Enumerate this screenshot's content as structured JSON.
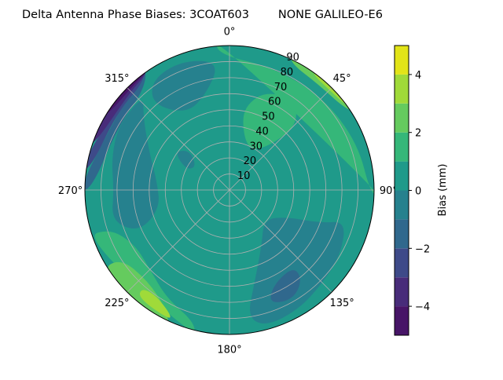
{
  "chart_data": {
    "type": "contour",
    "projection": "polar",
    "title": "Delta Antenna Phase Biases: 3COAT603        NONE GALILEO-E6",
    "theta_direction": "clockwise",
    "theta_zero": "north",
    "theta_ticks": [
      0,
      45,
      90,
      135,
      180,
      225,
      270,
      315
    ],
    "theta_tick_labels": [
      "0°",
      "45°",
      "90°",
      "135°",
      "180°",
      "225°",
      "270°",
      "315°"
    ],
    "r_range": [
      0,
      90
    ],
    "r_ticks": [
      10,
      20,
      30,
      40,
      50,
      60,
      70,
      80,
      90
    ],
    "r_tick_labels": [
      "10",
      "20",
      "30",
      "40",
      "50",
      "60",
      "70",
      "80",
      "90"
    ],
    "grid": true,
    "levels": [
      -5,
      -4,
      -3,
      -2,
      -1,
      0,
      1,
      2,
      3,
      4,
      5
    ],
    "level_colors": [
      "#471567",
      "#482c7a",
      "#3e4a89",
      "#30688d",
      "#26818e",
      "#1f9a8a",
      "#35b779",
      "#65cb5e",
      "#a0da39",
      "#e2e418"
    ],
    "background_level": 5,
    "regions": [
      {
        "level": 4,
        "points": [
          [
            110,
            60
          ],
          [
            115,
            40
          ],
          [
            130,
            28
          ],
          [
            150,
            40
          ],
          [
            165,
            60
          ],
          [
            172,
            80
          ],
          [
            165,
            88
          ],
          [
            150,
            86
          ],
          [
            135,
            82
          ],
          [
            120,
            80
          ],
          [
            105,
            75
          ]
        ]
      },
      {
        "level": 3,
        "points": [
          [
            140,
            62
          ],
          [
            155,
            65
          ],
          [
            161,
            75
          ],
          [
            150,
            79
          ],
          [
            141,
            72
          ]
        ]
      },
      {
        "level": 4,
        "points": [
          [
            245,
            62
          ],
          [
            255,
            45
          ],
          [
            275,
            45
          ],
          [
            295,
            55
          ],
          [
            310,
            70
          ],
          [
            318,
            80
          ],
          [
            300,
            80
          ],
          [
            285,
            76
          ],
          [
            270,
            72
          ],
          [
            255,
            76
          ]
        ]
      },
      {
        "level": 4,
        "points": [
          [
            318,
            72
          ],
          [
            330,
            55
          ],
          [
            345,
            60
          ],
          [
            356,
            80
          ],
          [
            340,
            86
          ],
          [
            325,
            84
          ]
        ]
      },
      {
        "level": 4,
        "points": [
          [
            295,
            30
          ],
          [
            305,
            25
          ],
          [
            315,
            35
          ],
          [
            305,
            42
          ]
        ]
      },
      {
        "level": 6,
        "points": [
          [
            10,
            45
          ],
          [
            20,
            30
          ],
          [
            35,
            30
          ],
          [
            45,
            45
          ],
          [
            45,
            60
          ],
          [
            35,
            70
          ],
          [
            20,
            65
          ],
          [
            12,
            55
          ]
        ]
      },
      {
        "level": 6,
        "points": [
          [
            355,
            85
          ],
          [
            20,
            81
          ],
          [
            45,
            82
          ],
          [
            70,
            85
          ],
          [
            92,
            88
          ],
          [
            92,
            95
          ],
          [
            355,
            95
          ]
        ]
      },
      {
        "level": 7,
        "points": [
          [
            25,
            88
          ],
          [
            40,
            86
          ],
          [
            55,
            88
          ],
          [
            60,
            95
          ],
          [
            25,
            95
          ]
        ]
      },
      {
        "level": 8,
        "points": [
          [
            35,
            89
          ],
          [
            45,
            88
          ],
          [
            55,
            90
          ],
          [
            55,
            95
          ],
          [
            35,
            95
          ]
        ]
      },
      {
        "level": 6,
        "points": [
          [
            252,
            78
          ],
          [
            240,
            68
          ],
          [
            225,
            70
          ],
          [
            210,
            78
          ],
          [
            195,
            85
          ],
          [
            193,
            95
          ],
          [
            252,
            95
          ]
        ]
      },
      {
        "level": 7,
        "points": [
          [
            238,
            80
          ],
          [
            222,
            76
          ],
          [
            208,
            84
          ],
          [
            203,
            95
          ],
          [
            238,
            95
          ]
        ]
      },
      {
        "level": 8,
        "points": [
          [
            222,
            82
          ],
          [
            215,
            80
          ],
          [
            205,
            86
          ],
          [
            205,
            89
          ],
          [
            220,
            88
          ]
        ]
      },
      {
        "level": 3,
        "points": [
          [
            270,
            86
          ],
          [
            300,
            80
          ],
          [
            320,
            82
          ],
          [
            327,
            95
          ],
          [
            270,
            95
          ]
        ]
      },
      {
        "level": 2,
        "points": [
          [
            278,
            88
          ],
          [
            305,
            85
          ],
          [
            322,
            86
          ],
          [
            326,
            95
          ],
          [
            278,
            95
          ]
        ]
      },
      {
        "level": 1,
        "points": [
          [
            288,
            89
          ],
          [
            315,
            87
          ],
          [
            325,
            89
          ],
          [
            326,
            95
          ],
          [
            288,
            95
          ]
        ]
      },
      {
        "level": 0,
        "points": [
          [
            300,
            89.6
          ],
          [
            320,
            89
          ],
          [
            326,
            90
          ],
          [
            326,
            95
          ],
          [
            300,
            95
          ]
        ]
      }
    ],
    "colorbar": {
      "label": "Bias (mm)",
      "range": [
        -5,
        5
      ],
      "ticks": [
        -4,
        -2,
        0,
        2,
        4
      ],
      "tick_labels": [
        "−4",
        "−2",
        "0",
        "2",
        "4"
      ]
    }
  }
}
